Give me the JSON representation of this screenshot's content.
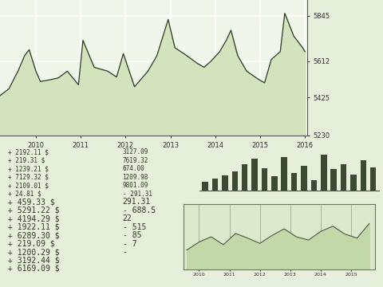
{
  "chart_data": [
    {
      "type": "line",
      "color": "#2e3b2a",
      "grid": true,
      "x": [
        2009.2,
        2009.4,
        2009.6,
        2009.75,
        2009.85,
        2010.0,
        2010.1,
        2010.3,
        2010.5,
        2010.7,
        2010.95,
        2011.05,
        2011.3,
        2011.6,
        2011.8,
        2011.95,
        2012.2,
        2012.5,
        2012.7,
        2012.95,
        2013.1,
        2013.3,
        2013.6,
        2013.75,
        2013.9,
        2014.1,
        2014.25,
        2014.35,
        2014.5,
        2014.7,
        2014.95,
        2015.1,
        2015.25,
        2015.45,
        2015.55,
        2015.75,
        2015.85,
        2015.95,
        2016.0
      ],
      "values": [
        5434,
        5470,
        5560,
        5640,
        5670,
        5560,
        5507,
        5515,
        5525,
        5560,
        5490,
        5718,
        5580,
        5560,
        5530,
        5650,
        5480,
        5560,
        5640,
        5825,
        5680,
        5650,
        5600,
        5580,
        5610,
        5660,
        5720,
        5770,
        5640,
        5560,
        5520,
        5500,
        5620,
        5660,
        5857,
        5740,
        5710,
        5680,
        5660
      ],
      "xlim": [
        2009.2,
        2016.05
      ],
      "xticks": [
        2010,
        2011,
        2012,
        2013,
        2014,
        2015,
        2016
      ],
      "ylim": [
        5230,
        5925
      ],
      "yticks": [
        5230,
        5425,
        5612,
        5845
      ]
    },
    {
      "type": "bar",
      "color": "#3d4a33",
      "tick_labels": false,
      "values": [
        10,
        14,
        17,
        22,
        30,
        36,
        25,
        16,
        38,
        20,
        28,
        12,
        40,
        24,
        30,
        18,
        34,
        26
      ],
      "ylim": [
        0,
        40
      ]
    },
    {
      "type": "line",
      "color": "#4a5a40",
      "grid": true,
      "tick_labels": "x",
      "x": [
        2009.6,
        2010.0,
        2010.4,
        2010.8,
        2011.2,
        2011.6,
        2012.0,
        2012.4,
        2012.8,
        2013.2,
        2013.6,
        2014.0,
        2014.4,
        2014.8,
        2015.2,
        2015.6
      ],
      "values": [
        30,
        42,
        50,
        38,
        55,
        48,
        40,
        52,
        62,
        50,
        45,
        58,
        66,
        54,
        48,
        70
      ],
      "xlim": [
        2009.5,
        2015.8
      ],
      "xticks": [
        2010,
        2011,
        2012,
        2013,
        2014,
        2015
      ],
      "ylim": [
        0,
        100
      ]
    }
  ],
  "table": {
    "rows": [
      [
        "+ 2192.11 $",
        "3127.09"
      ],
      [
        "+ 219.31 $",
        "7619.32"
      ],
      [
        "+ 1239.21 $",
        "674.00"
      ],
      [
        "+ 7129.32 $",
        "1209.98"
      ],
      [
        "+ 2109.01 $",
        "9801.09"
      ],
      [
        "+ 24.81 $",
        "- 291.31"
      ],
      [
        "+ 459.33 $",
        "291.31"
      ],
      [
        "+ 5291.22 $",
        "- 688.5"
      ],
      [
        "+ 4194.29 $",
        "22"
      ],
      [
        "+ 1922.11 $",
        "- 515"
      ],
      [
        "+ 6289.30 $",
        "- 85"
      ],
      [
        "+ 219.09 $",
        "- 7"
      ],
      [
        "+ 1200.29 $",
        "-"
      ],
      [
        "+ 3192.44 $"
      ],
      [
        "+ 6169.09 $"
      ]
    ]
  }
}
